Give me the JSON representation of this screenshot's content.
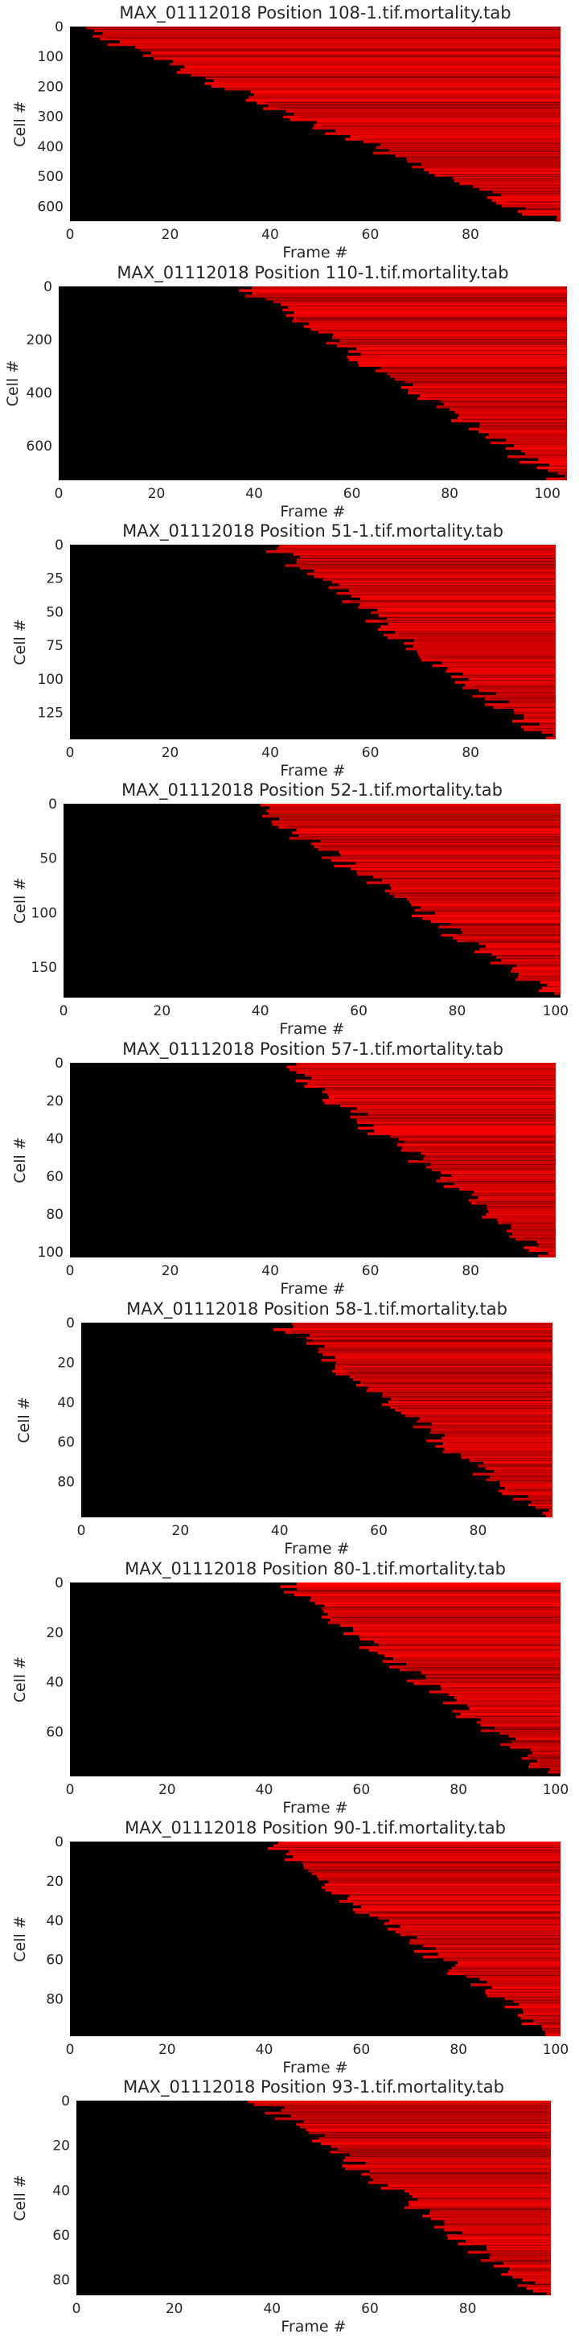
{
  "chart_data": [
    {
      "type": "heatmap",
      "title": "MAX_01112018 Position 108-1.tif.mortality.tab",
      "xlabel": "Frame #",
      "ylabel": "Cell #",
      "xlim": [
        0,
        98
      ],
      "ylim": [
        0,
        650
      ],
      "xticks": [
        0,
        20,
        40,
        60,
        80
      ],
      "yticks": [
        0,
        100,
        200,
        300,
        400,
        500,
        600
      ],
      "colors": {
        "low": "#000000",
        "high": "#ff0000"
      },
      "death_onset": {
        "cell_first": 0,
        "frame_first": 2,
        "cell_last": 650,
        "frame_last": 97
      }
    },
    {
      "type": "heatmap",
      "title": "MAX_01112018 Position 110-1.tif.mortality.tab",
      "xlabel": "Frame #",
      "ylabel": "Cell #",
      "xlim": [
        0,
        104
      ],
      "ylim": [
        0,
        730
      ],
      "xticks": [
        0,
        20,
        40,
        60,
        80,
        100
      ],
      "yticks": [
        0,
        200,
        400,
        600
      ],
      "colors": {
        "low": "#000000",
        "high": "#ff0000"
      },
      "death_onset": {
        "cell_first": 0,
        "frame_first": 38,
        "cell_last": 730,
        "frame_last": 103
      }
    },
    {
      "type": "heatmap",
      "title": "MAX_01112018 Position 51-1.tif.mortality.tab",
      "xlabel": "Frame #",
      "ylabel": "Cell #",
      "xlim": [
        0,
        97
      ],
      "ylim": [
        0,
        145
      ],
      "xticks": [
        0,
        20,
        40,
        60,
        80
      ],
      "yticks": [
        0,
        25,
        50,
        75,
        100,
        125
      ],
      "colors": {
        "low": "#000000",
        "high": "#ff0000"
      },
      "death_onset": {
        "cell_first": 0,
        "frame_first": 40,
        "cell_last": 145,
        "frame_last": 96
      }
    },
    {
      "type": "heatmap",
      "title": "MAX_01112018 Position 52-1.tif.mortality.tab",
      "xlabel": "Frame #",
      "ylabel": "Cell #",
      "xlim": [
        0,
        101
      ],
      "ylim": [
        0,
        178
      ],
      "xticks": [
        0,
        20,
        40,
        60,
        80,
        100
      ],
      "yticks": [
        0,
        50,
        100,
        150
      ],
      "colors": {
        "low": "#000000",
        "high": "#ff0000"
      },
      "death_onset": {
        "cell_first": 0,
        "frame_first": 38,
        "cell_last": 178,
        "frame_last": 100
      }
    },
    {
      "type": "heatmap",
      "title": "MAX_01112018 Position 57-1.tif.mortality.tab",
      "xlabel": "Frame #",
      "ylabel": "Cell #",
      "xlim": [
        0,
        97
      ],
      "ylim": [
        0,
        103
      ],
      "xticks": [
        0,
        20,
        40,
        60,
        80
      ],
      "yticks": [
        0,
        20,
        40,
        60,
        80,
        100
      ],
      "colors": {
        "low": "#000000",
        "high": "#ff0000"
      },
      "death_onset": {
        "cell_first": 0,
        "frame_first": 43,
        "cell_last": 103,
        "frame_last": 96
      }
    },
    {
      "type": "heatmap",
      "title": "MAX_01112018 Position 58-1.tif.mortality.tab",
      "xlabel": "Frame #",
      "ylabel": "Cell #",
      "xlim": [
        0,
        95
      ],
      "ylim": [
        0,
        98
      ],
      "xticks": [
        0,
        20,
        40,
        60,
        80
      ],
      "yticks": [
        0,
        20,
        40,
        60,
        80
      ],
      "colors": {
        "low": "#000000",
        "high": "#ff0000"
      },
      "death_onset": {
        "cell_first": 0,
        "frame_first": 40,
        "cell_last": 98,
        "frame_last": 94
      }
    },
    {
      "type": "heatmap",
      "title": "MAX_01112018 Position 80-1.tif.mortality.tab",
      "xlabel": "Frame #",
      "ylabel": "Cell #",
      "xlim": [
        0,
        101
      ],
      "ylim": [
        0,
        78
      ],
      "xticks": [
        0,
        20,
        40,
        60,
        80,
        100
      ],
      "yticks": [
        0,
        20,
        40,
        60
      ],
      "colors": {
        "low": "#000000",
        "high": "#ff0000"
      },
      "death_onset": {
        "cell_first": 0,
        "frame_first": 44,
        "cell_last": 78,
        "frame_last": 100
      }
    },
    {
      "type": "heatmap",
      "title": "MAX_01112018 Position 90-1.tif.mortality.tab",
      "xlabel": "Frame #",
      "ylabel": "Cell #",
      "xlim": [
        0,
        101
      ],
      "ylim": [
        0,
        99
      ],
      "xticks": [
        0,
        20,
        40,
        60,
        80,
        100
      ],
      "yticks": [
        0,
        20,
        40,
        60,
        80
      ],
      "colors": {
        "low": "#000000",
        "high": "#ff0000"
      },
      "death_onset": {
        "cell_first": 0,
        "frame_first": 40,
        "cell_last": 99,
        "frame_last": 100
      }
    },
    {
      "type": "heatmap",
      "title": "MAX_01112018 Position 93-1.tif.mortality.tab",
      "xlabel": "Frame #",
      "ylabel": "Cell #",
      "xlim": [
        0,
        97
      ],
      "ylim": [
        0,
        87
      ],
      "xticks": [
        0,
        20,
        40,
        60,
        80
      ],
      "yticks": [
        0,
        20,
        40,
        60,
        80
      ],
      "colors": {
        "low": "#000000",
        "high": "#ff0000"
      },
      "death_onset": {
        "cell_first": 0,
        "frame_first": 38,
        "cell_last": 87,
        "frame_last": 96
      }
    }
  ]
}
